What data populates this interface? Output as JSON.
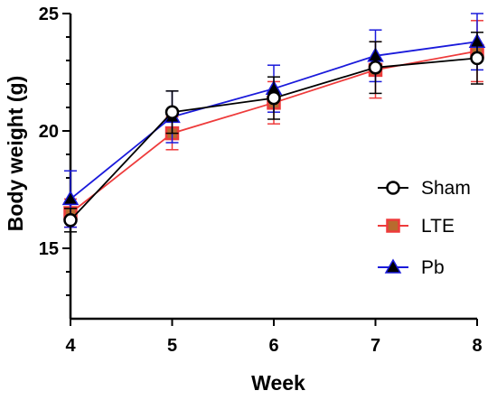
{
  "chart_data": {
    "type": "line",
    "xlabel": "Week",
    "ylabel": "Body weight (g)",
    "x": [
      4,
      5,
      6,
      7,
      8
    ],
    "xlim": [
      4,
      8
    ],
    "ylim": [
      12,
      25
    ],
    "xticks": [
      4,
      5,
      6,
      7,
      8
    ],
    "yticks": [
      15,
      20,
      25
    ],
    "grid": false,
    "legend_position": "right",
    "series": [
      {
        "name": "Sham",
        "color": "#000000",
        "marker": "circle",
        "values": [
          16.2,
          20.8,
          21.4,
          22.7,
          23.1
        ],
        "errors": [
          0.5,
          0.9,
          0.9,
          1.1,
          1.1
        ]
      },
      {
        "name": "LTE",
        "color": "#ee3b3b",
        "marker": "square",
        "values": [
          16.5,
          19.9,
          21.2,
          22.6,
          23.4
        ],
        "errors": [
          0.6,
          0.7,
          0.9,
          1.2,
          1.3
        ]
      },
      {
        "name": "Pb",
        "color": "#1a1adb",
        "marker": "triangle",
        "values": [
          17.1,
          20.6,
          21.8,
          23.2,
          23.8
        ],
        "errors": [
          1.2,
          1.1,
          1.0,
          1.1,
          1.2
        ]
      }
    ]
  }
}
